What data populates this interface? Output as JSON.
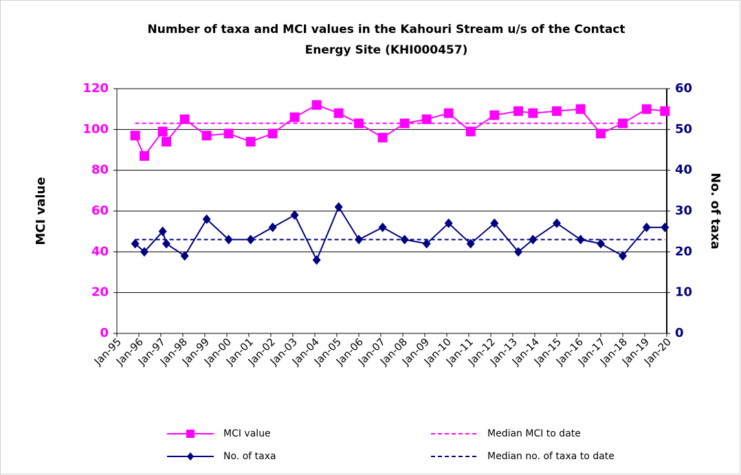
{
  "chart_data": {
    "type": "line",
    "title": [
      "Number of taxa and MCI values in the Kahouri Stream u/s of the Contact",
      "Energy Site (KHI000457)"
    ],
    "y_label": "MCI value",
    "y2_label": "No. of taxa",
    "x": [
      "1995-11",
      "1996-04",
      "1997-02",
      "1997-04",
      "1998-02",
      "1999-02",
      "2000-02",
      "2001-02",
      "2002-02",
      "2003-02",
      "2004-02",
      "2005-02",
      "2006-01",
      "2007-02",
      "2008-02",
      "2009-02",
      "2010-02",
      "2011-02",
      "2012-03",
      "2013-04",
      "2013-12",
      "2015-01",
      "2016-02",
      "2017-01",
      "2018-01",
      "2019-02",
      "2019-12"
    ],
    "xlim": [
      "1995-01",
      "2020-01"
    ],
    "xticks": [
      {
        "value": "1995-01",
        "label": "Jan-95"
      },
      {
        "value": "1996-01",
        "label": "Jan-96"
      },
      {
        "value": "1997-01",
        "label": "Jan-97"
      },
      {
        "value": "1998-01",
        "label": "Jan-98"
      },
      {
        "value": "1999-01",
        "label": "Jan-99"
      },
      {
        "value": "2000-01",
        "label": "Jan-00"
      },
      {
        "value": "2001-01",
        "label": "Jan-01"
      },
      {
        "value": "2002-01",
        "label": "Jan-02"
      },
      {
        "value": "2003-01",
        "label": "Jan-03"
      },
      {
        "value": "2004-01",
        "label": "Jan-04"
      },
      {
        "value": "2005-01",
        "label": "Jan-05"
      },
      {
        "value": "2006-01",
        "label": "Jan-06"
      },
      {
        "value": "2007-01",
        "label": "Jan-07"
      },
      {
        "value": "2008-01",
        "label": "Jan-08"
      },
      {
        "value": "2009-01",
        "label": "Jan-09"
      },
      {
        "value": "2010-01",
        "label": "Jan-10"
      },
      {
        "value": "2011-01",
        "label": "Jan-11"
      },
      {
        "value": "2012-01",
        "label": "Jan-12"
      },
      {
        "value": "2013-01",
        "label": "Jan-13"
      },
      {
        "value": "2014-01",
        "label": "Jan-14"
      },
      {
        "value": "2015-01",
        "label": "Jan-15"
      },
      {
        "value": "2016-01",
        "label": "Jan-16"
      },
      {
        "value": "2017-01",
        "label": "Jan-17"
      },
      {
        "value": "2018-01",
        "label": "Jan-18"
      },
      {
        "value": "2019-01",
        "label": "Jan-19"
      },
      {
        "value": "2020-01",
        "label": "Jan-20"
      }
    ],
    "ylim": [
      0,
      120
    ],
    "yticks": [
      0,
      20,
      40,
      60,
      80,
      100,
      120
    ],
    "y2lim": [
      0,
      60
    ],
    "y2ticks": [
      0,
      10,
      20,
      30,
      40,
      50,
      60
    ],
    "grid": true,
    "series": [
      {
        "name": "MCI value",
        "color": "#ff00ff",
        "marker": "square",
        "values": [
          97,
          87,
          99,
          94,
          105,
          97,
          98,
          94,
          98,
          106,
          112,
          108,
          103,
          96,
          103,
          105,
          108,
          99,
          107,
          109,
          108,
          109,
          110,
          98,
          103,
          110,
          109
        ]
      },
      {
        "name": "Median MCI to date",
        "color": "#ff00ff",
        "dashed": true,
        "x": [
          "1995-11",
          "2019-12"
        ],
        "values": [
          103,
          103
        ]
      },
      {
        "name": "No. of taxa",
        "color": "#000080",
        "marker": "diamond",
        "axis": "y2",
        "values": [
          22,
          20,
          25,
          22,
          19,
          28,
          23,
          23,
          26,
          29,
          18,
          31,
          23,
          26,
          23,
          22,
          27,
          22,
          27,
          20,
          23,
          27,
          23,
          22,
          19,
          26,
          26
        ]
      },
      {
        "name": "Median no. of taxa to date",
        "color": "#000080",
        "dashed": true,
        "axis": "y2",
        "x": [
          "1995-11",
          "2019-12"
        ],
        "values": [
          23,
          23
        ]
      }
    ]
  }
}
